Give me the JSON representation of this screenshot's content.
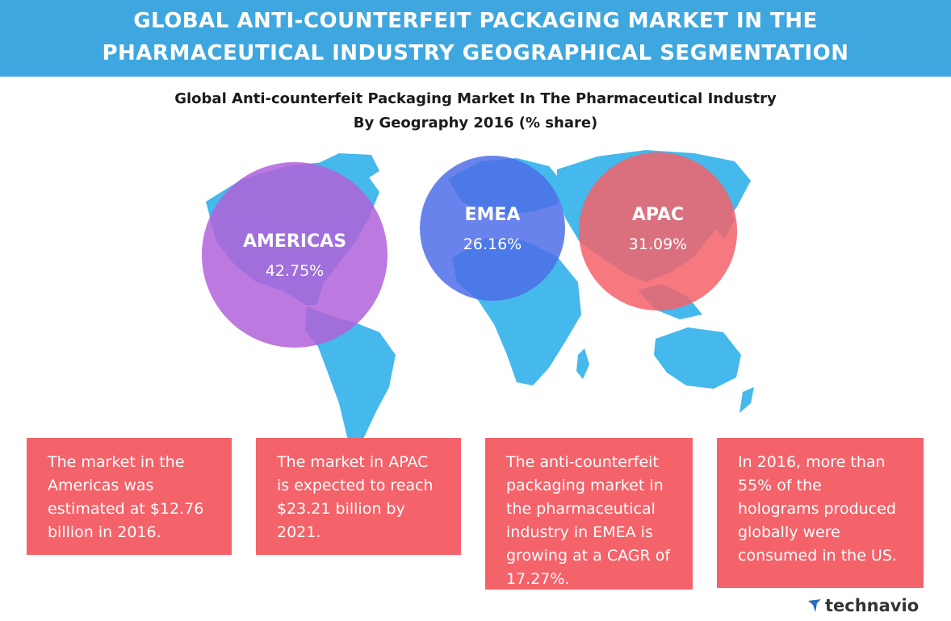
{
  "header": {
    "title_line1": "GLOBAL ANTI-COUNTERFEIT PACKAGING MARKET IN THE",
    "title_line2": "PHARMACEUTICAL INDUSTRY GEOGRAPHICAL SEGMENTATION"
  },
  "chart_data": {
    "type": "bubble",
    "title_line1": "Global Anti-counterfeit Packaging Market In The Pharmaceutical Industry",
    "title_line2": "By Geography 2016 (% share)",
    "categories": [
      "AMERICAS",
      "EMEA",
      "APAC"
    ],
    "values": [
      42.75,
      26.16,
      31.09
    ],
    "value_labels": [
      "42.75%",
      "26.16%",
      "31.09%"
    ],
    "unit": "% share",
    "colors": [
      "#b061d9",
      "#4d6de8",
      "#f4626a"
    ]
  },
  "cards": [
    {
      "text": "The market in the Americas was estimated at $12.76 billion in 2016."
    },
    {
      "text": "The market in APAC is expected to reach $23.21 billion by 2021."
    },
    {
      "text": "The anti-counterfeit packaging market in the pharmaceutical industry in EMEA is growing at a CAGR of 17.27%."
    },
    {
      "text": "In 2016, more than 55% of the holograms produced globally were consumed in the US."
    }
  ],
  "logo": {
    "text": "technavio",
    "icon": "technavio-logo-icon"
  },
  "colors": {
    "banner": "#3fa7df",
    "map": "#45b8ec",
    "card": "#f4626a"
  }
}
